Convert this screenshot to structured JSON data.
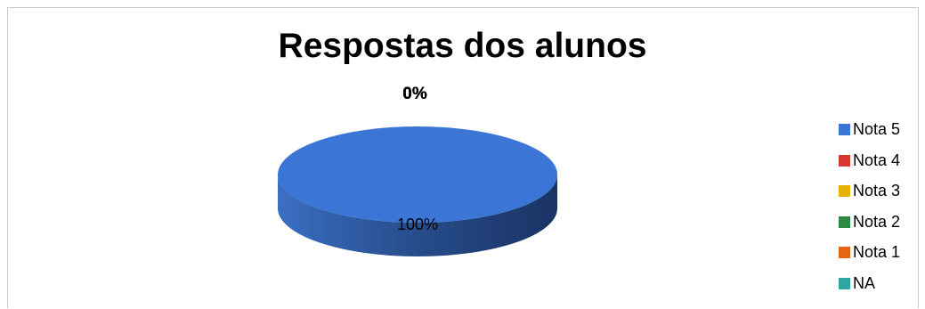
{
  "chart_data": {
    "type": "pie",
    "title": "Respostas dos alunos",
    "labels": [
      "Nota 5",
      "Nota 4",
      "Nota 3",
      "Nota 2",
      "Nota 1",
      "NA"
    ],
    "values": [
      100,
      0,
      0,
      0,
      0,
      0
    ],
    "data_labels": [
      "100%",
      "0%",
      "0%",
      "0%",
      "0%",
      "0%"
    ],
    "colors": [
      "#3b76d6",
      "#d6392d",
      "#e6b100",
      "#2e8a43",
      "#e6660f",
      "#2fa5a5"
    ],
    "legend_position": "right",
    "style": "3d"
  }
}
